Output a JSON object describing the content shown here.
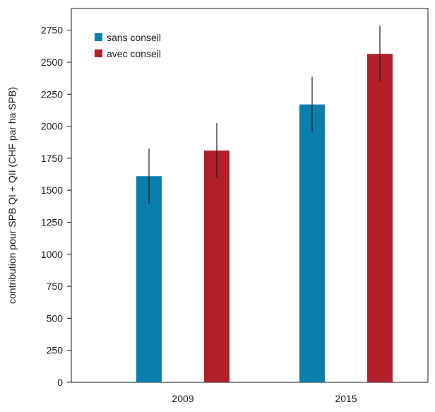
{
  "chart_data": {
    "type": "bar",
    "categories": [
      "2009",
      "2015"
    ],
    "series": [
      {
        "name": "sans conseil",
        "color": "#0a7fad",
        "values": [
          1610,
          2170
        ],
        "error_low": [
          1395,
          1955
        ],
        "error_high": [
          1825,
          2385
        ]
      },
      {
        "name": "avec conseil",
        "color": "#b11f2a",
        "values": [
          1810,
          2565
        ],
        "error_low": [
          1595,
          2350
        ],
        "error_high": [
          2025,
          2785
        ]
      }
    ],
    "title": "",
    "xlabel": "",
    "ylabel": "contribution pour SPB QI + QII (CHF par ha SPB)",
    "ylim": [
      0,
      2790
    ],
    "yticks": [
      0,
      250,
      500,
      750,
      1000,
      1250,
      1500,
      1750,
      2000,
      2250,
      2500,
      2750
    ],
    "grid": false,
    "legend_position": "top-left"
  }
}
